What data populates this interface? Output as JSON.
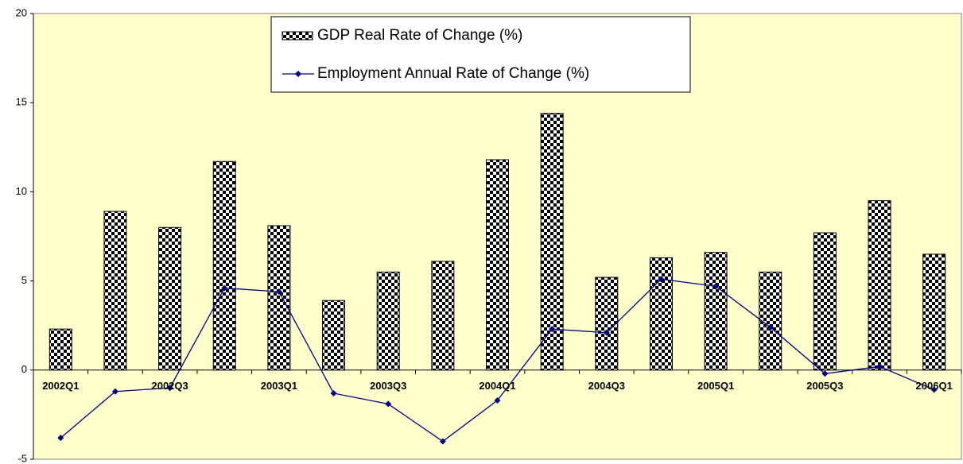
{
  "chart_data": {
    "type": "bar",
    "categories": [
      "2002Q1",
      null,
      "2002Q3",
      null,
      "2003Q1",
      null,
      "2003Q3",
      null,
      "2004Q1",
      null,
      "2004Q3",
      null,
      "2005Q1",
      null,
      "2005Q3",
      null,
      "2006Q1"
    ],
    "series": [
      {
        "name": "GDP Real Rate of Change (%)",
        "type": "bar",
        "color": "#000000",
        "values": [
          2.3,
          8.9,
          8.0,
          11.7,
          8.1,
          3.9,
          5.5,
          6.1,
          11.8,
          14.4,
          5.2,
          6.3,
          6.6,
          5.5,
          7.7,
          9.5,
          6.5
        ]
      },
      {
        "name": "Employment Annual Rate of Change (%)",
        "type": "line",
        "color": "#000080",
        "values": [
          -3.8,
          -1.2,
          -1.0,
          4.6,
          4.4,
          -1.3,
          -1.9,
          -4.0,
          -1.7,
          2.3,
          2.1,
          5.1,
          4.7,
          2.4,
          -0.2,
          0.2,
          -1.1
        ]
      }
    ],
    "ylim": [
      -5,
      20
    ],
    "yticks": [
      -5,
      0,
      5,
      10,
      15,
      20
    ],
    "grid": false,
    "legend": "top",
    "background": "#ffffcc"
  }
}
